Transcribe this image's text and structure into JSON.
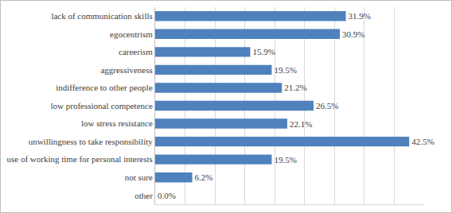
{
  "chart_data": {
    "type": "bar",
    "orientation": "horizontal",
    "categories": [
      "lack of communication skills",
      "egocentrism",
      "careerism",
      "aggressiveness",
      "indifference to other people",
      "low professional competence",
      "low stress resistance",
      "unwillingness to take responsibility",
      "use of working time for personal interests",
      "not sure",
      "other"
    ],
    "values": [
      31.9,
      30.9,
      15.9,
      19.5,
      21.2,
      26.5,
      22.1,
      42.5,
      19.5,
      6.2,
      0.0
    ],
    "value_labels": [
      "31.9%",
      "30.9%",
      "15.9%",
      "19.5%",
      "21.2%",
      "26.5%",
      "22.1%",
      "42.5%",
      "19.5%",
      "6.2%",
      "0.0%"
    ],
    "color": "#4f81bd",
    "xlim": [
      0,
      45
    ],
    "xticks": [
      0,
      5,
      10,
      15,
      20,
      25,
      30,
      35,
      40,
      45
    ],
    "grid": true,
    "data_labels": true,
    "tick_labels": "y"
  }
}
